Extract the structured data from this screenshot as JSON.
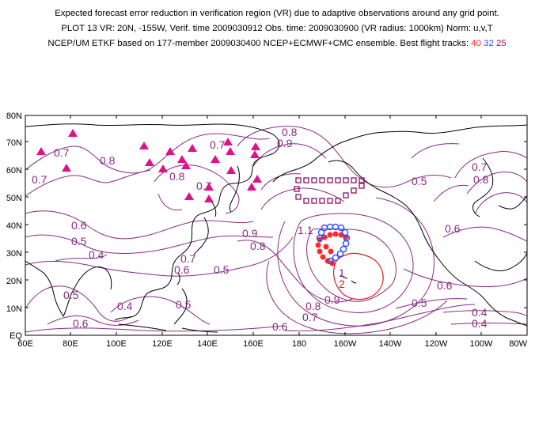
{
  "title_lines": [
    "Expected forecast error reduction in verification region (VR) due to adaptive observations around any grid point.",
    "PLOT 13 VR: 20N, -155W, Verif. time 2009030912 Obs. time: 2009030900 (VR radius: 1000km) Norm: u,v,T"
  ],
  "line3_prefix": "NCEP/UM ETKF based on 177-member 2009030400 NCEP+ECMWF+CMC ensemble. Best flight tracks: ",
  "tracks": [
    {
      "label": "40",
      "color": "#ff2a2a"
    },
    {
      "label": "32",
      "color": "#2a4bff"
    },
    {
      "label": "25",
      "color": "#8a0f6a"
    }
  ],
  "lat_ticks": [
    "EQ",
    "10N",
    "20N",
    "30N",
    "40N",
    "50N",
    "60N",
    "70N",
    "80N"
  ],
  "lon_ticks": [
    "60E",
    "80E",
    "100E",
    "120E",
    "140E",
    "160E",
    "180",
    "160W",
    "140W",
    "120W",
    "100W",
    "80W"
  ],
  "contour_labels": [
    {
      "text": "0.7",
      "color": "#8a2a84"
    },
    {
      "text": "0.7",
      "color": "#8a2a84"
    },
    {
      "text": "0.8",
      "color": "#8a2a84"
    },
    {
      "text": "0.8",
      "color": "#8a2a84"
    },
    {
      "text": "0.7",
      "color": "#8a2a84"
    },
    {
      "text": "0.7",
      "color": "#8a2a84"
    },
    {
      "text": "0.8",
      "color": "#8a2a84"
    },
    {
      "text": "0.9",
      "color": "#8a2a84"
    },
    {
      "text": "0.6",
      "color": "#8a2a84"
    },
    {
      "text": "0.5",
      "color": "#8a2a84"
    },
    {
      "text": "0.4",
      "color": "#8a2a84"
    },
    {
      "text": "0.7",
      "color": "#8a2a84"
    },
    {
      "text": "0.6",
      "color": "#8a2a84"
    },
    {
      "text": "0.5",
      "color": "#8a2a84"
    },
    {
      "text": "0.9",
      "color": "#8a2a84"
    },
    {
      "text": "0.8",
      "color": "#8a2a84"
    },
    {
      "text": "1.1",
      "color": "#8a2a84"
    },
    {
      "text": "1",
      "color": "#8a2a84"
    },
    {
      "text": "2",
      "color": "#d42222"
    },
    {
      "text": "0.9",
      "color": "#8a2a84"
    },
    {
      "text": "0.8",
      "color": "#8a2a84"
    },
    {
      "text": "0.7",
      "color": "#8a2a84"
    },
    {
      "text": "0.6",
      "color": "#8a2a84"
    },
    {
      "text": "0.5",
      "color": "#8a2a84"
    },
    {
      "text": "0.7",
      "color": "#8a2a84"
    },
    {
      "text": "0.8",
      "color": "#8a2a84"
    },
    {
      "text": "0.6",
      "color": "#8a2a84"
    },
    {
      "text": "0.6",
      "color": "#8a2a84"
    },
    {
      "text": "0.5",
      "color": "#8a2a84"
    },
    {
      "text": "0.4",
      "color": "#8a2a84"
    },
    {
      "text": "0.4",
      "color": "#8a2a84"
    },
    {
      "text": "0.5",
      "color": "#8a2a84"
    },
    {
      "text": "0.6",
      "color": "#8a2a84"
    },
    {
      "text": "0.5",
      "color": "#8a2a84"
    },
    {
      "text": "0.4",
      "color": "#8a2a84"
    }
  ],
  "colors": {
    "contour": "#8a2a84",
    "contour_high": "#d42222",
    "coastline": "#000000",
    "marker_triangle": "#e0108c",
    "track_40": "#ff2a2a",
    "track_32": "#2a4bff",
    "track_25": "#8a0f6a"
  },
  "markers": {
    "sites": "triangle",
    "track_40": "filled-circle",
    "track_32": "open-circle",
    "track_25": "open-square"
  }
}
